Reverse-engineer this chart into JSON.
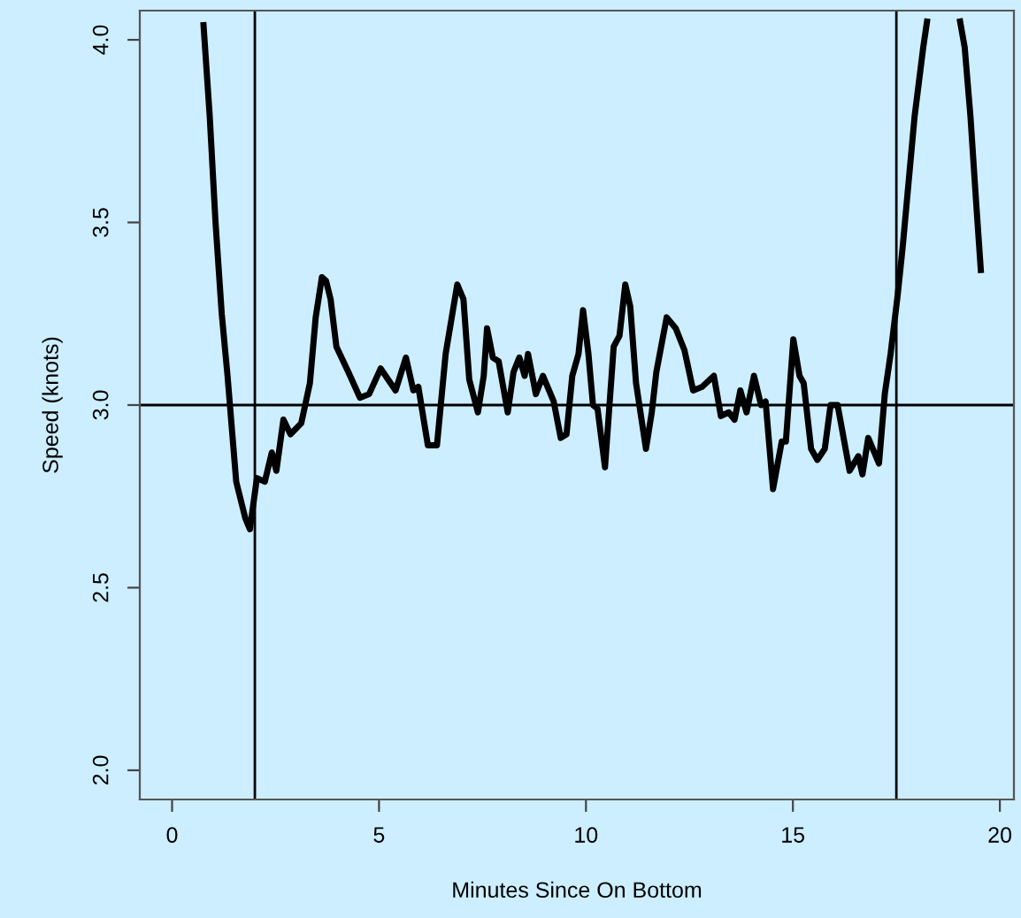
{
  "chart_data": {
    "type": "line",
    "xlabel": "Minutes Since On Bottom",
    "ylabel": "Speed (knots)",
    "xlim": [
      -0.78,
      20.34
    ],
    "ylim": [
      1.92,
      4.08
    ],
    "xticks": [
      0,
      5,
      10,
      15,
      20
    ],
    "yticks": [
      {
        "value": 2,
        "label": "2.0"
      },
      {
        "value": 2.5,
        "label": "2.5"
      },
      {
        "value": 3,
        "label": "3.0"
      },
      {
        "value": 3.5,
        "label": "3.5"
      },
      {
        "value": 4,
        "label": "4.0"
      }
    ],
    "grid": false,
    "line_style": "solid",
    "marker": "none",
    "ref_lines": [
      {
        "axis": "x",
        "value": 2,
        "label": null,
        "color": "#000000"
      },
      {
        "axis": "x",
        "value": 17.5,
        "label": null,
        "color": "#000000"
      },
      {
        "axis": "y",
        "value": 3,
        "label": null,
        "color": "#000000"
      }
    ],
    "series": [
      {
        "color": "#000000",
        "x": [
          0.76,
          0.91,
          1.05,
          1.2,
          1.34,
          1.55,
          1.77,
          1.88,
          2.05,
          2.24,
          2.41,
          2.52,
          2.69,
          2.86,
          3.12,
          3.33,
          3.47,
          3.62,
          3.72,
          3.83,
          3.97,
          4.26,
          4.54,
          4.76,
          5.04,
          5.4,
          5.65,
          5.83,
          5.95,
          6.18,
          6.4,
          6.61,
          6.89,
          7.04,
          7.18,
          7.39,
          7.53,
          7.61,
          7.75,
          7.89,
          8.11,
          8.25,
          8.39,
          8.52,
          8.6,
          8.79,
          8.96,
          9.22,
          9.39,
          9.53,
          9.67,
          9.82,
          9.93,
          10.06,
          10.17,
          10.28,
          10.46,
          10.67,
          10.81,
          10.95,
          11.07,
          11.21,
          11.45,
          11.59,
          11.7,
          11.95,
          12.17,
          12.38,
          12.59,
          12.81,
          13.09,
          13.26,
          13.45,
          13.59,
          13.73,
          13.88,
          14.06,
          14.23,
          14.34,
          14.52,
          14.73,
          14.83,
          15.01,
          15.16,
          15.26,
          15.44,
          15.59,
          15.77,
          15.91,
          16.08,
          16.37,
          16.58,
          16.68,
          16.82,
          17.08,
          17.22,
          17.36,
          17.53,
          17.65,
          17.94,
          18.15,
          18.24,
          18.6,
          19.04,
          19.15,
          19.29,
          19.43,
          19.54
        ],
        "values": [
          4.04,
          3.79,
          3.5,
          3.25,
          3.08,
          2.79,
          2.69,
          2.66,
          2.8,
          2.79,
          2.87,
          2.82,
          2.96,
          2.92,
          2.95,
          3.06,
          3.24,
          3.35,
          3.34,
          3.29,
          3.16,
          3.09,
          3.02,
          3.03,
          3.1,
          3.04,
          3.13,
          3.04,
          3.05,
          2.89,
          2.89,
          3.14,
          3.33,
          3.29,
          3.07,
          2.98,
          3.08,
          3.21,
          3.13,
          3.12,
          2.98,
          3.09,
          3.13,
          3.08,
          3.14,
          3.03,
          3.08,
          3.01,
          2.91,
          2.92,
          3.08,
          3.14,
          3.26,
          3.14,
          3.0,
          2.99,
          2.83,
          3.16,
          3.19,
          3.33,
          3.27,
          3.06,
          2.88,
          2.98,
          3.09,
          3.24,
          3.21,
          3.15,
          3.04,
          3.05,
          3.08,
          2.97,
          2.98,
          2.96,
          3.04,
          2.98,
          3.08,
          3.0,
          3.01,
          2.77,
          2.9,
          2.9,
          3.18,
          3.08,
          3.06,
          2.88,
          2.85,
          2.88,
          3.0,
          3.0,
          2.82,
          2.86,
          2.81,
          2.91,
          2.84,
          3.03,
          3.14,
          3.3,
          3.43,
          3.79,
          3.98,
          4.05,
          null,
          4.05,
          3.98,
          3.79,
          3.55,
          3.37
        ]
      }
    ]
  }
}
